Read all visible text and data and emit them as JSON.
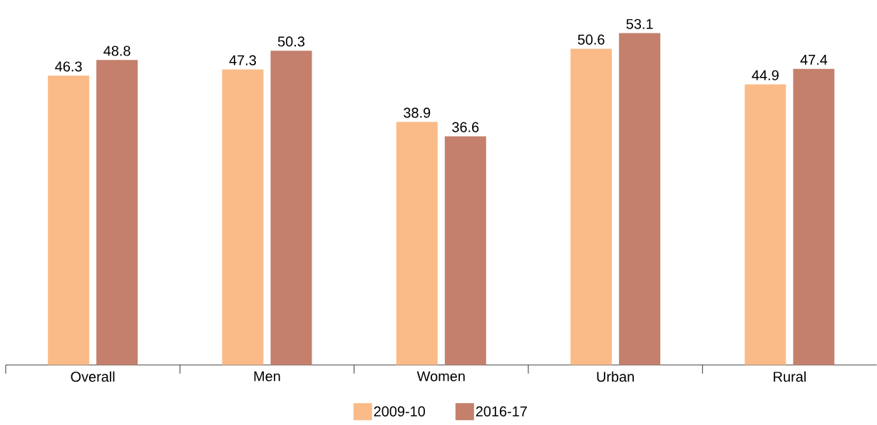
{
  "chart_data": {
    "type": "bar",
    "categories": [
      "Overall",
      "Men",
      "Women",
      "Urban",
      "Rural"
    ],
    "series": [
      {
        "name": "2009-10",
        "color": "#fabb88",
        "values": [
          46.3,
          47.3,
          38.9,
          50.6,
          44.9
        ]
      },
      {
        "name": "2016-17",
        "color": "#c4806c",
        "values": [
          48.8,
          50.3,
          36.6,
          53.1,
          47.4
        ]
      }
    ],
    "data_labels": true,
    "legend": "bottom"
  }
}
